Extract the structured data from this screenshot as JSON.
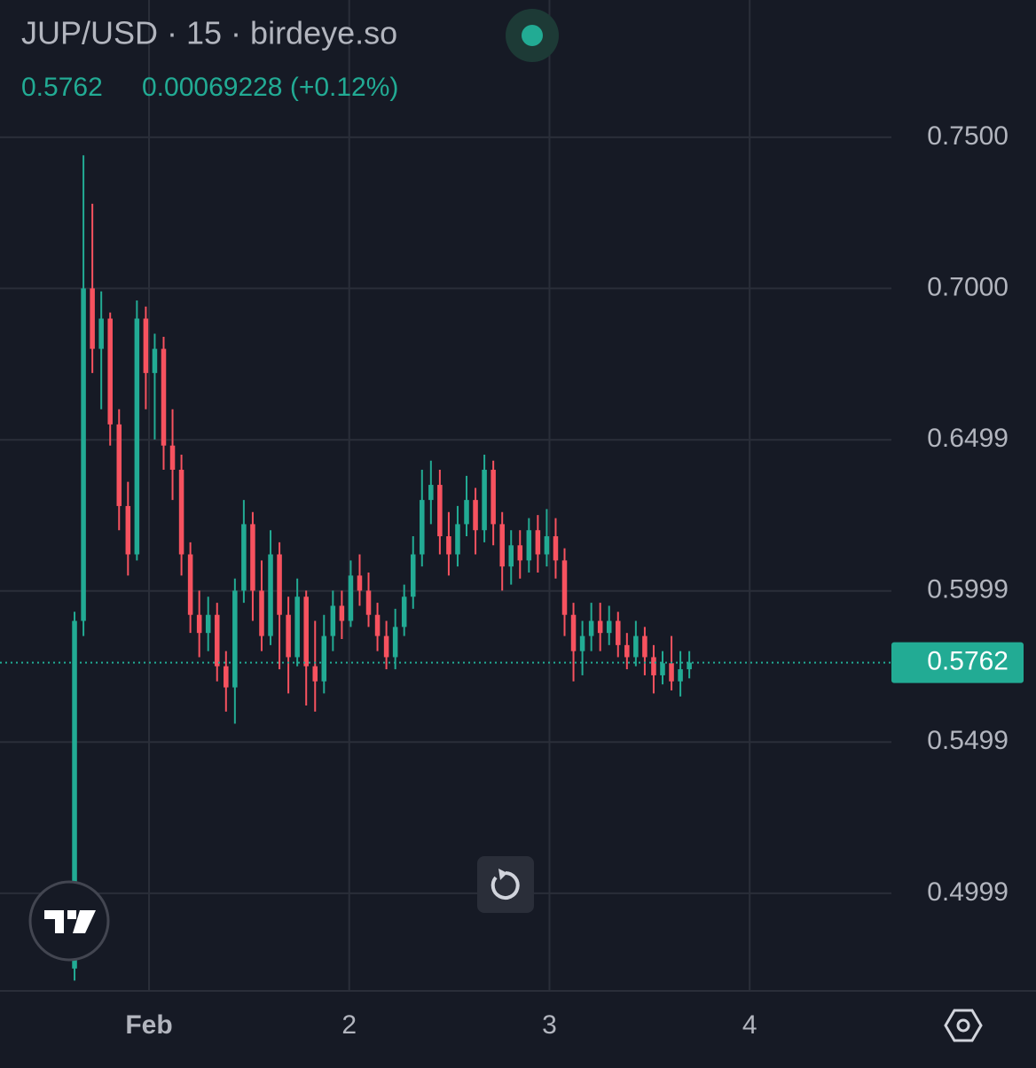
{
  "chart_data": {
    "type": "candlestick",
    "title": "JUP/USD · 15 · birdeye.so",
    "last_price": 0.5762,
    "change_label": "0.00069228 (+0.12%)",
    "up_color": "#22ab94",
    "down_color": "#f7525f",
    "x": [
      0.628,
      0.6725,
      0.717,
      0.7615,
      0.806,
      0.8505,
      0.895,
      0.9395,
      0.984,
      1.0285,
      1.073,
      1.1175,
      1.162,
      1.2065,
      1.251,
      1.2955,
      1.34,
      1.3845,
      1.429,
      1.4735,
      1.518,
      1.5625,
      1.607,
      1.6515,
      1.696,
      1.7405,
      1.785,
      1.8295,
      1.874,
      1.9185,
      1.963,
      2.0075,
      2.052,
      2.0965,
      2.141,
      2.1855,
      2.23,
      2.2745,
      2.319,
      2.3635,
      2.408,
      2.4525,
      2.497,
      2.5415,
      2.586,
      2.6305,
      2.675,
      2.7195,
      2.764,
      2.8085,
      2.853,
      2.8975,
      2.942,
      2.9865,
      3.031,
      3.0755,
      3.12,
      3.1645,
      3.209,
      3.2535,
      3.298,
      3.3425,
      3.387,
      3.4315,
      3.476,
      3.5205,
      3.565,
      3.6095,
      3.654,
      3.6985
    ],
    "open": [
      0.475,
      0.59,
      0.7,
      0.68,
      0.69,
      0.655,
      0.628,
      0.612,
      0.69,
      0.672,
      0.68,
      0.648,
      0.64,
      0.612,
      0.592,
      0.586,
      0.592,
      0.575,
      0.568,
      0.6,
      0.622,
      0.6,
      0.585,
      0.612,
      0.592,
      0.578,
      0.598,
      0.575,
      0.57,
      0.585,
      0.595,
      0.59,
      0.605,
      0.6,
      0.592,
      0.585,
      0.578,
      0.588,
      0.598,
      0.612,
      0.63,
      0.635,
      0.618,
      0.612,
      0.622,
      0.63,
      0.62,
      0.64,
      0.622,
      0.608,
      0.615,
      0.61,
      0.62,
      0.612,
      0.618,
      0.61,
      0.592,
      0.58,
      0.585,
      0.59,
      0.586,
      0.59,
      0.582,
      0.578,
      0.585,
      0.578,
      0.572,
      0.576,
      0.57,
      0.574
    ],
    "high": [
      0.593,
      0.744,
      0.728,
      0.699,
      0.692,
      0.66,
      0.636,
      0.696,
      0.694,
      0.685,
      0.684,
      0.66,
      0.645,
      0.616,
      0.6,
      0.598,
      0.596,
      0.58,
      0.604,
      0.63,
      0.626,
      0.61,
      0.62,
      0.616,
      0.598,
      0.604,
      0.6,
      0.59,
      0.592,
      0.6,
      0.6,
      0.61,
      0.612,
      0.606,
      0.596,
      0.59,
      0.594,
      0.602,
      0.618,
      0.64,
      0.643,
      0.64,
      0.626,
      0.628,
      0.638,
      0.634,
      0.645,
      0.643,
      0.626,
      0.62,
      0.62,
      0.624,
      0.625,
      0.627,
      0.624,
      0.614,
      0.596,
      0.59,
      0.596,
      0.596,
      0.595,
      0.593,
      0.586,
      0.59,
      0.588,
      0.582,
      0.58,
      0.585,
      0.58,
      0.58
    ],
    "low": [
      0.471,
      0.585,
      0.672,
      0.66,
      0.648,
      0.62,
      0.605,
      0.61,
      0.66,
      0.65,
      0.64,
      0.63,
      0.605,
      0.586,
      0.578,
      0.58,
      0.57,
      0.56,
      0.556,
      0.596,
      0.59,
      0.58,
      0.582,
      0.574,
      0.566,
      0.575,
      0.562,
      0.56,
      0.566,
      0.58,
      0.584,
      0.588,
      0.595,
      0.588,
      0.58,
      0.574,
      0.574,
      0.585,
      0.594,
      0.608,
      0.622,
      0.612,
      0.605,
      0.608,
      0.618,
      0.612,
      0.616,
      0.615,
      0.6,
      0.602,
      0.604,
      0.606,
      0.606,
      0.608,
      0.604,
      0.585,
      0.57,
      0.572,
      0.58,
      0.58,
      0.582,
      0.578,
      0.574,
      0.575,
      0.572,
      0.566,
      0.569,
      0.567,
      0.565,
      0.571
    ],
    "close": [
      0.59,
      0.7,
      0.68,
      0.69,
      0.655,
      0.628,
      0.612,
      0.69,
      0.672,
      0.68,
      0.648,
      0.64,
      0.612,
      0.592,
      0.586,
      0.592,
      0.575,
      0.568,
      0.6,
      0.622,
      0.6,
      0.585,
      0.612,
      0.592,
      0.578,
      0.598,
      0.575,
      0.57,
      0.585,
      0.595,
      0.59,
      0.605,
      0.6,
      0.592,
      0.585,
      0.578,
      0.588,
      0.598,
      0.612,
      0.63,
      0.635,
      0.618,
      0.612,
      0.622,
      0.63,
      0.62,
      0.64,
      0.622,
      0.608,
      0.615,
      0.61,
      0.62,
      0.612,
      0.618,
      0.61,
      0.592,
      0.58,
      0.585,
      0.59,
      0.586,
      0.59,
      0.582,
      0.578,
      0.585,
      0.578,
      0.572,
      0.576,
      0.57,
      0.574,
      0.5762
    ],
    "xlim": [
      0.2557,
      4.708
    ],
    "xticks": [
      {
        "value": 1,
        "label": "Feb"
      },
      2,
      3,
      4
    ],
    "ylim": [
      0.4676,
      0.7954
    ],
    "yticks": [
      {
        "value": 0.75,
        "label": "0.7500"
      },
      {
        "value": 0.7,
        "label": "0.7000"
      },
      0.6499,
      0.5999,
      0.5499,
      0.4999
    ],
    "grid": true
  }
}
